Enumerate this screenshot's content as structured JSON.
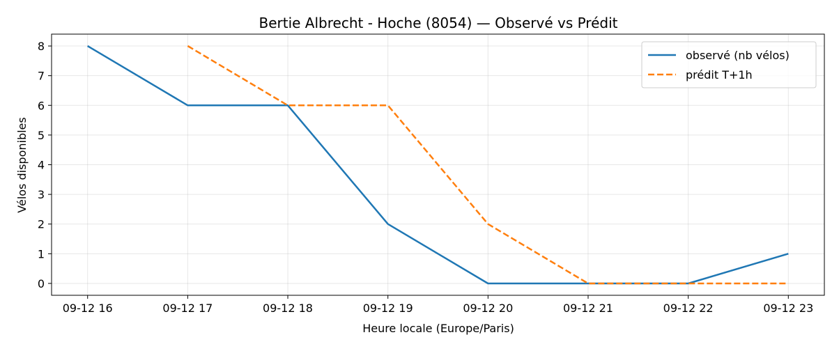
{
  "chart_data": {
    "type": "line",
    "title": "Bertie Albrecht - Hoche (8054) — Observé vs Prédit",
    "xlabel": "Heure locale (Europe/Paris)",
    "ylabel": "Vélos disponibles",
    "categories": [
      "09-12 16",
      "09-12 17",
      "09-12 18",
      "09-12 19",
      "09-12 20",
      "09-12 21",
      "09-12 22",
      "09-12 23"
    ],
    "yticks": [
      0,
      1,
      2,
      3,
      4,
      5,
      6,
      7,
      8
    ],
    "ylim": [
      -0.4,
      8.4
    ],
    "xlim": [
      -0.36,
      7.36
    ],
    "grid": true,
    "legend_position": "top-right",
    "series": [
      {
        "name": "observé (nb vélos)",
        "style": "solid",
        "color": "#1f77b4",
        "values": [
          8,
          6,
          6,
          2,
          0,
          0,
          0,
          1
        ]
      },
      {
        "name": "prédit T+1h",
        "style": "dashed",
        "color": "#ff7f0e",
        "values": [
          null,
          8,
          6,
          6,
          2,
          0,
          0,
          0
        ]
      }
    ]
  }
}
